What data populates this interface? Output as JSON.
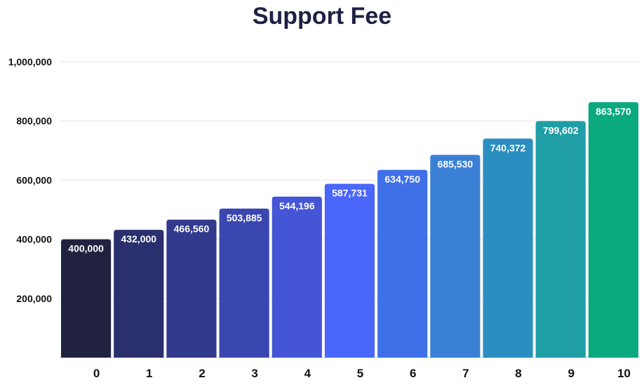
{
  "chart_data": {
    "type": "bar",
    "title": "Support Fee",
    "xlabel": "",
    "ylabel": "",
    "categories": [
      "0",
      "1",
      "2",
      "3",
      "4",
      "5",
      "6",
      "7",
      "8",
      "9",
      "10"
    ],
    "values": [
      400000,
      432000,
      466560,
      503885,
      544196,
      587731,
      634750,
      685530,
      740372,
      799602,
      863570
    ],
    "value_labels": [
      "400,000",
      "432,000",
      "466,560",
      "503,885",
      "544,196",
      "587,731",
      "634,750",
      "685,530",
      "740,372",
      "799,602",
      "863,570"
    ],
    "ylim": [
      0,
      1000000
    ],
    "yticks": [
      200000,
      400000,
      600000,
      800000,
      1000000
    ],
    "ytick_labels": [
      "200,000",
      "400,000",
      "600,000",
      "800,000",
      "1,000,000"
    ],
    "grid": true,
    "legend": "none",
    "colors": [
      "#212240",
      "#2a2f6e",
      "#323a8e",
      "#3b47b0",
      "#4455d6",
      "#4b66fa",
      "#3f70e8",
      "#3a81d6",
      "#2b8ec0",
      "#1f9ea5",
      "#0aa97e"
    ]
  }
}
